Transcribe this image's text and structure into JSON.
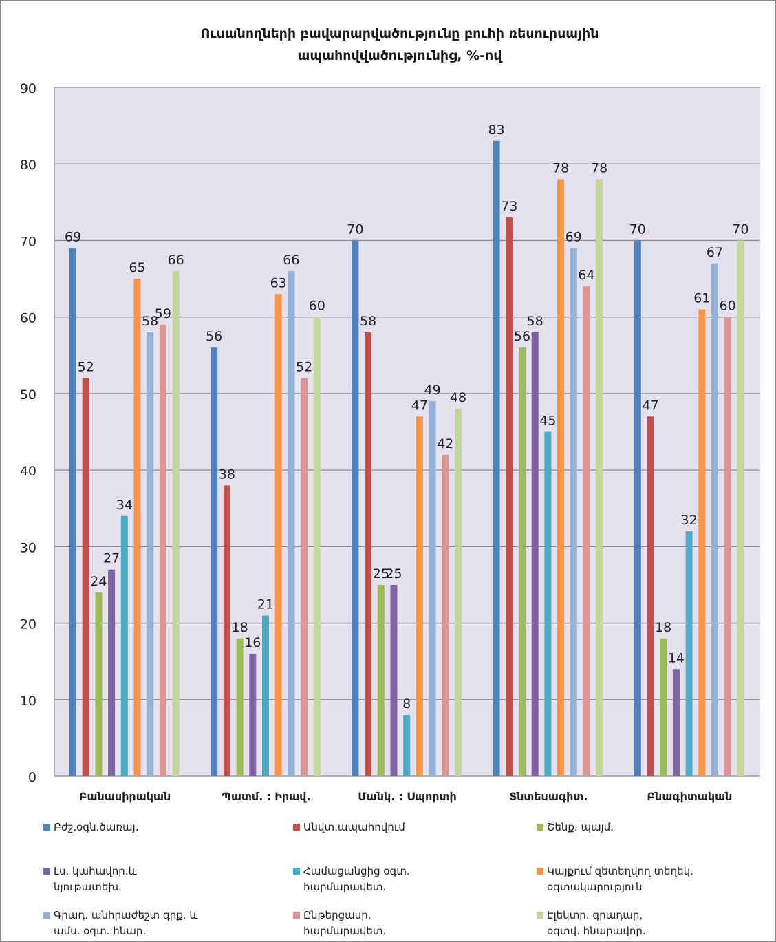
{
  "chart_data": {
    "type": "bar",
    "title": "Ուսանողների բավարարվածությունը բուհի ռեսուրսային ապահովվածությունից, %-ով",
    "ylim": [
      0,
      90
    ],
    "yticks": [
      0,
      10,
      20,
      30,
      40,
      50,
      60,
      70,
      80,
      90
    ],
    "grid": true,
    "legend_position": "bottom",
    "categories": [
      "Բանասիրական",
      "Պատմ. ։ Իրավ.",
      "Մանկ. ։ Սպորտի",
      "Տնտեսագիտ.",
      "Բնագիտական"
    ],
    "series": [
      {
        "name": "Բժշ.օգն.ծառայ.",
        "color": "#4f81bd",
        "values": [
          69,
          56,
          70,
          83,
          70
        ]
      },
      {
        "name": "Անվտ.ապահովում",
        "color": "#c0504d",
        "values": [
          52,
          38,
          58,
          73,
          47
        ]
      },
      {
        "name": "Շենք. պայմ.",
        "color": "#9bbb59",
        "values": [
          24,
          18,
          25,
          56,
          18
        ]
      },
      {
        "name": "Լս. կահավոր.և\nնյութատեխ.",
        "color": "#8064a2",
        "values": [
          27,
          16,
          25,
          58,
          14
        ]
      },
      {
        "name": "Համացանցից օգտ.\nհարմարավետ.",
        "color": "#4bacc6",
        "values": [
          34,
          21,
          8,
          45,
          32
        ]
      },
      {
        "name": "Կայքում զետեղվող տեղեկ.\nօգտակարություն",
        "color": "#f79646",
        "values": [
          65,
          63,
          47,
          78,
          61
        ]
      },
      {
        "name": "Գրադ. անհրաժեշտ գրք. և\nամս. օգտ. հնար.",
        "color": "#95b3d7",
        "values": [
          58,
          66,
          49,
          69,
          67
        ]
      },
      {
        "name": "Ընթերցասր.\nհարմարավետ.",
        "color": "#d99694",
        "values": [
          59,
          52,
          42,
          64,
          60
        ]
      },
      {
        "name": "Էլեկտր. գրադար,\nօգտվ. հնարավոր.",
        "color": "#c3d69b",
        "values": [
          66,
          60,
          48,
          78,
          70
        ]
      }
    ]
  }
}
